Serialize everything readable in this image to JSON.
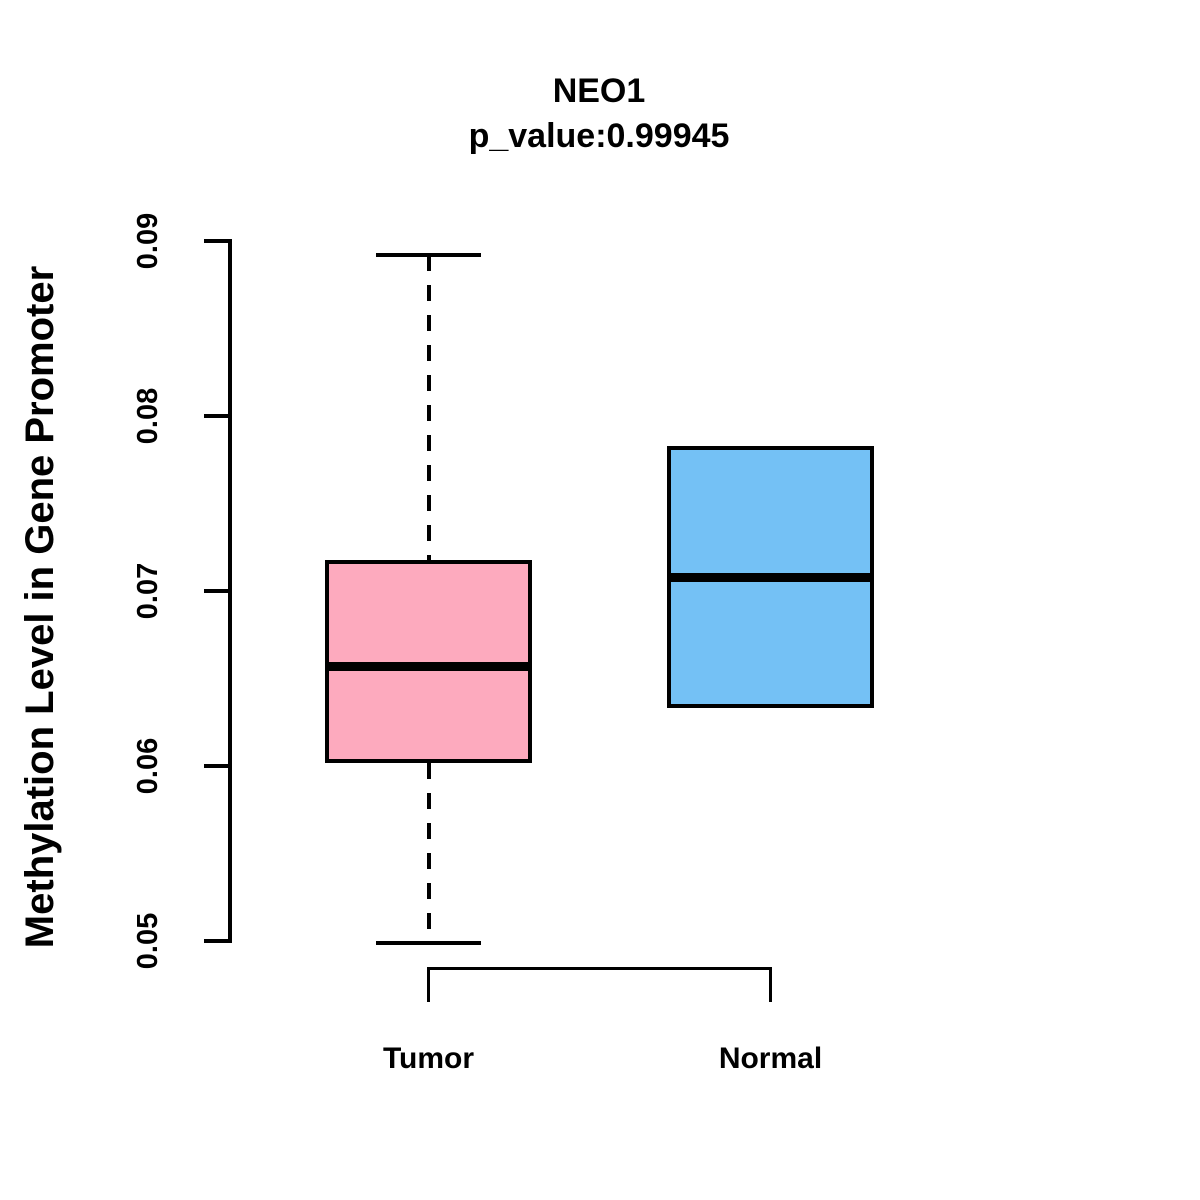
{
  "figure": {
    "title": "NEO1",
    "subtitle": "p_value:0.99945",
    "y_axis_title": "Methylation Level in Gene Promoter"
  },
  "colors": {
    "tumor_fill": "#FDAABE",
    "normal_fill": "#74C1F5",
    "stroke": "#000000",
    "background": "#FFFFFF"
  },
  "chart_data": {
    "type": "boxplot",
    "title": "NEO1",
    "subtitle": "p_value:0.99945",
    "xlabel": "",
    "ylabel": "Methylation Level in Gene Promoter",
    "categories": [
      "Tumor",
      "Normal"
    ],
    "ylim": [
      0.05,
      0.09
    ],
    "yticks": [
      0.05,
      0.06,
      0.07,
      0.08,
      0.09
    ],
    "ytick_labels": [
      "0.05",
      "0.06",
      "0.07",
      "0.08",
      "0.09"
    ],
    "grid": false,
    "legend": "none",
    "series": [
      {
        "name": "Tumor",
        "color": "#FDAABE",
        "whisker_low": 0.0499,
        "q1": 0.0602,
        "median": 0.0657,
        "q3": 0.0718,
        "whisker_high": 0.0892,
        "has_whiskers": true,
        "whisker_style": "dashed"
      },
      {
        "name": "Normal",
        "color": "#74C1F5",
        "whisker_low": 0.0633,
        "q1": 0.0633,
        "median": 0.0708,
        "q3": 0.0783,
        "whisker_high": 0.0783,
        "has_whiskers": false,
        "whisker_style": "dashed"
      }
    ]
  }
}
